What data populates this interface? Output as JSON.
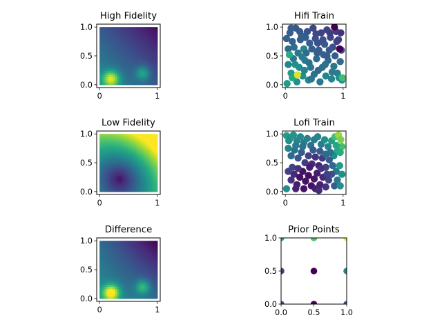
{
  "chart_data": [
    {
      "type": "heatmap",
      "title": "High Fidelity",
      "xlim": [
        -0.05,
        1.05
      ],
      "ylim": [
        -0.05,
        1.05
      ],
      "xticks": [
        "0",
        "1"
      ],
      "yticks": [
        "0.0",
        "0.5",
        "1.0"
      ],
      "colormap": "viridis",
      "value_range": [
        0,
        1
      ],
      "peaks": [
        {
          "x": 0.2,
          "y": 0.1,
          "value": 0.85
        },
        {
          "x": 0.75,
          "y": 0.2,
          "value": 0.55
        }
      ]
    },
    {
      "type": "scatter",
      "title": "Hifi Train",
      "xlim": [
        -0.05,
        1.05
      ],
      "ylim": [
        -0.05,
        1.05
      ],
      "xticks": [
        "0",
        "1"
      ],
      "yticks": [
        "0.0",
        "0.5",
        "1.0"
      ],
      "colormap": "viridis",
      "points": [
        [
          0.05,
          0.62,
          0.35
        ],
        [
          0.08,
          0.9,
          0.3
        ],
        [
          0.12,
          0.75,
          0.32
        ],
        [
          0.18,
          0.98,
          0.28
        ],
        [
          0.22,
          0.55,
          0.4
        ],
        [
          0.28,
          0.85,
          0.3
        ],
        [
          0.32,
          0.62,
          0.45
        ],
        [
          0.38,
          0.92,
          0.25
        ],
        [
          0.42,
          0.72,
          0.3
        ],
        [
          0.48,
          0.98,
          0.22
        ],
        [
          0.52,
          0.8,
          0.25
        ],
        [
          0.58,
          0.6,
          0.3
        ],
        [
          0.62,
          0.9,
          0.2
        ],
        [
          0.68,
          0.7,
          0.28
        ],
        [
          0.72,
          0.95,
          0.2
        ],
        [
          0.78,
          0.82,
          0.22
        ],
        [
          0.82,
          0.65,
          0.25
        ],
        [
          0.88,
          0.92,
          0.18
        ],
        [
          0.92,
          0.78,
          0.2
        ],
        [
          0.97,
          0.6,
          0.22
        ],
        [
          0.05,
          0.35,
          0.45
        ],
        [
          0.1,
          0.2,
          0.55
        ],
        [
          0.14,
          0.45,
          0.4
        ],
        [
          0.2,
          0.05,
          0.5
        ],
        [
          0.24,
          0.3,
          0.5
        ],
        [
          0.3,
          0.15,
          0.5
        ],
        [
          0.34,
          0.42,
          0.42
        ],
        [
          0.4,
          0.08,
          0.45
        ],
        [
          0.44,
          0.3,
          0.4
        ],
        [
          0.5,
          0.18,
          0.38
        ],
        [
          0.54,
          0.45,
          0.35
        ],
        [
          0.6,
          0.05,
          0.4
        ],
        [
          0.64,
          0.3,
          0.38
        ],
        [
          0.7,
          0.15,
          0.45
        ],
        [
          0.74,
          0.42,
          0.35
        ],
        [
          0.8,
          0.1,
          0.45
        ],
        [
          0.84,
          0.32,
          0.4
        ],
        [
          0.9,
          0.2,
          0.42
        ],
        [
          0.95,
          0.4,
          0.35
        ],
        [
          0.98,
          0.08,
          0.5
        ],
        [
          0.02,
          0.8,
          0.32
        ],
        [
          0.15,
          0.65,
          0.35
        ],
        [
          0.26,
          0.78,
          0.3
        ],
        [
          0.36,
          0.55,
          0.35
        ],
        [
          0.46,
          0.62,
          0.3
        ],
        [
          0.56,
          0.72,
          0.25
        ],
        [
          0.66,
          0.52,
          0.32
        ],
        [
          0.76,
          0.6,
          0.28
        ],
        [
          0.86,
          0.5,
          0.3
        ],
        [
          0.96,
          0.9,
          0.15
        ],
        [
          0.03,
          0.02,
          0.55
        ],
        [
          0.12,
          0.12,
          0.6
        ],
        [
          0.21,
          0.17,
          0.95
        ],
        [
          0.33,
          0.25,
          0.45
        ],
        [
          0.45,
          0.1,
          0.4
        ],
        [
          0.57,
          0.25,
          0.35
        ],
        [
          0.69,
          0.35,
          0.38
        ],
        [
          0.81,
          0.22,
          0.42
        ],
        [
          0.93,
          0.12,
          0.5
        ],
        [
          0.99,
          0.12,
          0.7
        ],
        [
          0.07,
          0.52,
          0.62
        ],
        [
          0.17,
          0.35,
          0.5
        ],
        [
          0.29,
          0.48,
          0.42
        ],
        [
          0.41,
          0.38,
          0.38
        ],
        [
          0.53,
          0.88,
          0.22
        ],
        [
          0.65,
          0.78,
          0.25
        ],
        [
          0.77,
          0.9,
          0.18
        ],
        [
          0.89,
          0.75,
          0.2
        ],
        [
          0.94,
          0.62,
          0.0
        ],
        [
          0.85,
          1.0,
          0.0
        ],
        [
          0.1,
          0.98,
          0.3
        ],
        [
          0.25,
          0.92,
          0.28
        ],
        [
          0.35,
          0.82,
          0.3
        ],
        [
          0.55,
          0.55,
          0.3
        ],
        [
          0.72,
          0.5,
          0.3
        ]
      ]
    },
    {
      "type": "heatmap",
      "title": "Low Fidelity",
      "xlim": [
        -0.05,
        1.05
      ],
      "ylim": [
        -0.05,
        1.05
      ],
      "xticks": [
        "0",
        "1"
      ],
      "yticks": [
        "0.0",
        "0.5",
        "1.0"
      ],
      "colormap": "viridis",
      "value_range": [
        0,
        1
      ]
    },
    {
      "type": "scatter",
      "title": "Lofi Train",
      "xlim": [
        -0.05,
        1.05
      ],
      "ylim": [
        -0.05,
        1.05
      ],
      "xticks": [
        "0",
        "1"
      ],
      "yticks": [
        "0.0",
        "0.5",
        "1.0"
      ],
      "colormap": "viridis",
      "points": [
        [
          0.02,
          0.97,
          0.55
        ],
        [
          0.08,
          0.92,
          0.5
        ],
        [
          0.14,
          0.98,
          0.52
        ],
        [
          0.2,
          0.88,
          0.45
        ],
        [
          0.26,
          0.95,
          0.48
        ],
        [
          0.32,
          0.85,
          0.42
        ],
        [
          0.38,
          0.92,
          0.45
        ],
        [
          0.44,
          0.8,
          0.38
        ],
        [
          0.5,
          0.9,
          0.42
        ],
        [
          0.56,
          0.95,
          0.45
        ],
        [
          0.62,
          0.82,
          0.42
        ],
        [
          0.68,
          0.9,
          0.5
        ],
        [
          0.74,
          0.78,
          0.45
        ],
        [
          0.8,
          0.88,
          0.55
        ],
        [
          0.86,
          0.95,
          0.7
        ],
        [
          0.92,
          0.98,
          0.85
        ],
        [
          0.96,
          0.9,
          0.8
        ],
        [
          0.98,
          0.78,
          0.7
        ],
        [
          0.9,
          0.7,
          0.6
        ],
        [
          0.84,
          0.62,
          0.5
        ],
        [
          0.05,
          0.75,
          0.45
        ],
        [
          0.1,
          0.62,
          0.35
        ],
        [
          0.16,
          0.72,
          0.38
        ],
        [
          0.22,
          0.58,
          0.28
        ],
        [
          0.28,
          0.68,
          0.3
        ],
        [
          0.34,
          0.5,
          0.18
        ],
        [
          0.4,
          0.62,
          0.2
        ],
        [
          0.46,
          0.48,
          0.12
        ],
        [
          0.52,
          0.6,
          0.15
        ],
        [
          0.58,
          0.45,
          0.1
        ],
        [
          0.64,
          0.58,
          0.18
        ],
        [
          0.7,
          0.42,
          0.2
        ],
        [
          0.76,
          0.55,
          0.3
        ],
        [
          0.82,
          0.45,
          0.35
        ],
        [
          0.88,
          0.35,
          0.4
        ],
        [
          0.94,
          0.45,
          0.55
        ],
        [
          0.98,
          0.3,
          0.5
        ],
        [
          0.05,
          0.35,
          0.2
        ],
        [
          0.1,
          0.2,
          0.15
        ],
        [
          0.15,
          0.3,
          0.12
        ],
        [
          0.2,
          0.12,
          0.08
        ],
        [
          0.25,
          0.25,
          0.05
        ],
        [
          0.3,
          0.35,
          0.05
        ],
        [
          0.35,
          0.18,
          0.05
        ],
        [
          0.4,
          0.28,
          0.04
        ],
        [
          0.45,
          0.1,
          0.05
        ],
        [
          0.5,
          0.22,
          0.06
        ],
        [
          0.55,
          0.32,
          0.08
        ],
        [
          0.6,
          0.12,
          0.1
        ],
        [
          0.65,
          0.25,
          0.12
        ],
        [
          0.7,
          0.08,
          0.15
        ],
        [
          0.75,
          0.2,
          0.2
        ],
        [
          0.8,
          0.3,
          0.25
        ],
        [
          0.85,
          0.1,
          0.3
        ],
        [
          0.9,
          0.2,
          0.4
        ],
        [
          0.95,
          0.1,
          0.5
        ],
        [
          0.02,
          0.05,
          0.5
        ],
        [
          0.12,
          0.42,
          0.2
        ],
        [
          0.22,
          0.4,
          0.15
        ],
        [
          0.32,
          0.05,
          0.05
        ],
        [
          0.42,
          0.42,
          0.08
        ],
        [
          0.52,
          0.05,
          0.08
        ],
        [
          0.62,
          0.4,
          0.15
        ],
        [
          0.72,
          0.3,
          0.2
        ],
        [
          0.78,
          0.68,
          0.38
        ],
        [
          0.88,
          0.8,
          0.6
        ],
        [
          0.95,
          0.68,
          0.62
        ],
        [
          0.06,
          0.88,
          0.5
        ],
        [
          0.18,
          0.8,
          0.42
        ],
        [
          0.3,
          0.78,
          0.38
        ],
        [
          0.48,
          0.72,
          0.3
        ],
        [
          0.6,
          0.7,
          0.3
        ],
        [
          0.7,
          0.65,
          0.35
        ],
        [
          0.18,
          0.05,
          0.1
        ],
        [
          0.58,
          0.02,
          0.12
        ]
      ]
    },
    {
      "type": "heatmap",
      "title": "Difference",
      "xlim": [
        -0.05,
        1.05
      ],
      "ylim": [
        -0.05,
        1.05
      ],
      "xticks": [
        "0",
        "1"
      ],
      "yticks": [
        "0.0",
        "0.5",
        "1.0"
      ],
      "colormap": "viridis",
      "value_range": [
        0,
        1
      ],
      "peaks": [
        {
          "x": 0.2,
          "y": 0.1,
          "value": 1.0
        },
        {
          "x": 0.75,
          "y": 0.2,
          "value": 0.7
        }
      ]
    },
    {
      "type": "scatter",
      "title": "Prior Points",
      "xlim": [
        0.0,
        1.0
      ],
      "ylim": [
        0.0,
        1.0
      ],
      "xticks": [
        "0.0",
        "0.5",
        "1.0"
      ],
      "yticks": [
        "0.0",
        "0.5",
        "1.0"
      ],
      "colormap": "viridis",
      "points": [
        [
          0.0,
          0.0,
          0.28
        ],
        [
          0.5,
          0.0,
          0.0
        ],
        [
          1.0,
          0.0,
          0.28
        ],
        [
          0.0,
          0.5,
          0.2
        ],
        [
          0.5,
          0.5,
          0.0
        ],
        [
          1.0,
          0.5,
          0.45
        ],
        [
          0.0,
          1.0,
          0.62
        ],
        [
          0.5,
          1.0,
          0.72
        ],
        [
          1.0,
          1.0,
          1.0
        ]
      ]
    }
  ]
}
